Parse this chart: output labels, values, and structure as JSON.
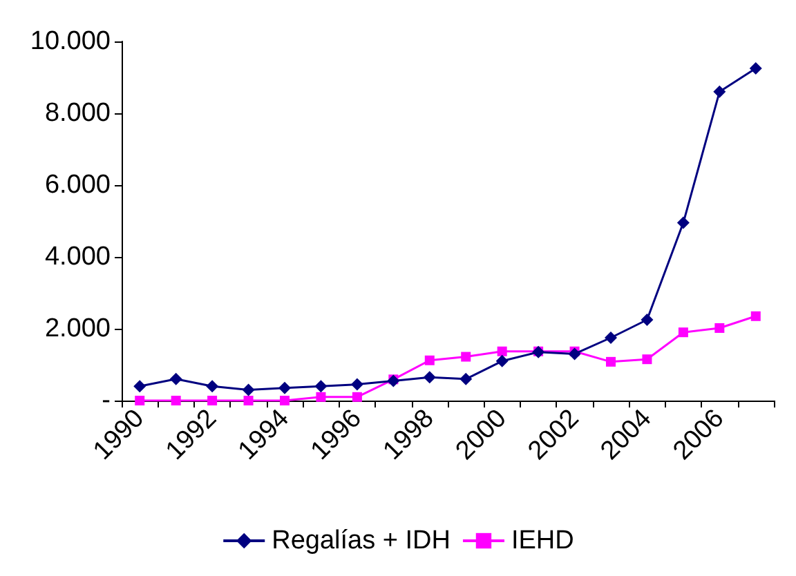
{
  "chart_data": {
    "type": "line",
    "categories": [
      "1990",
      null,
      "1992",
      null,
      "1994",
      null,
      "1996",
      null,
      "1998",
      null,
      "2000",
      null,
      "2002",
      null,
      "2004",
      null,
      "2006",
      null
    ],
    "series": [
      {
        "name": "Regalías + IDH",
        "color": "#000080",
        "marker": "diamond",
        "values": [
          400,
          600,
          400,
          300,
          350,
          400,
          450,
          550,
          650,
          600,
          1100,
          1350,
          1300,
          1750,
          2250,
          4950,
          8600,
          9250
        ]
      },
      {
        "name": "IEHD",
        "color": "#ff00ff",
        "marker": "square",
        "values": [
          0,
          0,
          0,
          0,
          0,
          100,
          100,
          590,
          1120,
          1220,
          1370,
          1370,
          1370,
          1080,
          1150,
          1900,
          2020,
          2350
        ]
      }
    ],
    "ylim": [
      0,
      10000
    ],
    "yticks": [
      {
        "value": 0,
        "label": "-"
      },
      {
        "value": 2000,
        "label": "2.000"
      },
      {
        "value": 4000,
        "label": "4.000"
      },
      {
        "value": 6000,
        "label": "6.000"
      },
      {
        "value": 8000,
        "label": "8.000"
      },
      {
        "value": 10000,
        "label": "10.000"
      }
    ],
    "grid": false,
    "legend": "bottom",
    "line_style": "solid"
  }
}
